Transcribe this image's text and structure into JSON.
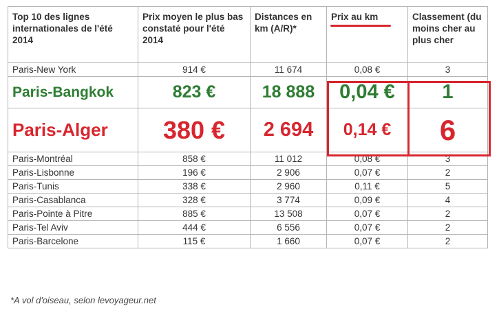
{
  "headers": [
    "Top 10 des lignes internationales de l'été 2014",
    "Prix moyen le plus bas constaté pour l'été 2014",
    "Distances en km (A/R)*",
    "Prix au km",
    "Classement (du moins cher au plus cher"
  ],
  "rows": [
    [
      "Paris-New York",
      "914 €",
      "11 674",
      "0,08 €",
      "3"
    ],
    [
      "Paris-Bangkok",
      "823 €",
      "18 888",
      "0,04 €",
      "1"
    ],
    [
      "Paris-Alger",
      "380 €",
      "2 694",
      "0,14 €",
      "6"
    ],
    [
      "Paris-Montréal",
      "858 €",
      "11 012",
      "0,08 €",
      "3"
    ],
    [
      "Paris-Lisbonne",
      "196 €",
      "2 906",
      "0,07 €",
      "2"
    ],
    [
      "Paris-Tunis",
      "338 €",
      "2 960",
      "0,11 €",
      "5"
    ],
    [
      "Paris-Casablanca",
      "328 €",
      "3 774",
      "0,09 €",
      "4"
    ],
    [
      "Paris-Pointe à Pitre",
      "885 €",
      "13 508",
      "0,07 €",
      "2"
    ],
    [
      "Paris-Tel Aviv",
      "444 €",
      "6 556",
      "0,07 €",
      "2"
    ],
    [
      "Paris-Barcelone",
      "115 €",
      "1 660",
      "0,07 €",
      "2"
    ]
  ],
  "highlight_colors": {
    "cheapest": "#2e7d32",
    "most_expensive": "#d7262e"
  },
  "footnote": "*A vol d'oiseau, selon levoyageur.net"
}
